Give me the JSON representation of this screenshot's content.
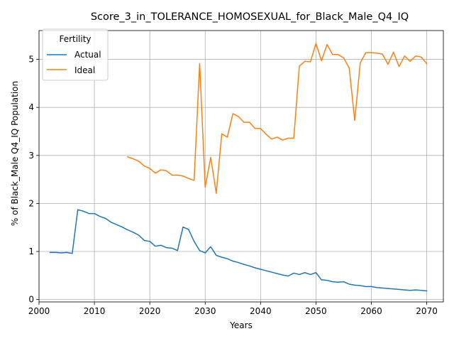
{
  "chart_data": {
    "type": "line",
    "title": "Score_3_in_TOLERANCE_HOMOSEXUAL_for_Black_Male_Q4_IQ",
    "xlabel": "Years",
    "ylabel": "% of Black_Male Q4_IQ Population",
    "xlim": [
      2000,
      2073
    ],
    "ylim": [
      -0.05,
      5.6
    ],
    "xticks": [
      2000,
      2010,
      2020,
      2030,
      2040,
      2050,
      2060,
      2070
    ],
    "yticks": [
      0,
      1,
      2,
      3,
      4,
      5
    ],
    "grid": true,
    "legend": {
      "title": "Fertility",
      "placement": "top-left"
    },
    "series": [
      {
        "name": "Actual",
        "color": "#1f77b4",
        "x": [
          2002,
          2003,
          2004,
          2005,
          2006,
          2007,
          2008,
          2009,
          2010,
          2011,
          2012,
          2013,
          2014,
          2015,
          2016,
          2017,
          2018,
          2019,
          2020,
          2021,
          2022,
          2023,
          2024,
          2025,
          2026,
          2027,
          2028,
          2029,
          2030,
          2031,
          2032,
          2033,
          2034,
          2035,
          2036,
          2037,
          2038,
          2039,
          2040,
          2041,
          2042,
          2043,
          2044,
          2045,
          2046,
          2047,
          2048,
          2049,
          2050,
          2051,
          2052,
          2053,
          2054,
          2055,
          2056,
          2057,
          2058,
          2059,
          2060,
          2061,
          2062,
          2063,
          2064,
          2065,
          2066,
          2067,
          2068,
          2069,
          2070
        ],
        "values": [
          0.98,
          0.98,
          0.97,
          0.98,
          0.96,
          1.87,
          1.84,
          1.79,
          1.79,
          1.73,
          1.69,
          1.61,
          1.56,
          1.51,
          1.45,
          1.4,
          1.34,
          1.23,
          1.21,
          1.11,
          1.13,
          1.08,
          1.07,
          1.02,
          1.51,
          1.46,
          1.21,
          1.02,
          0.97,
          1.1,
          0.92,
          0.88,
          0.85,
          0.8,
          0.77,
          0.73,
          0.7,
          0.66,
          0.63,
          0.6,
          0.57,
          0.54,
          0.51,
          0.49,
          0.55,
          0.52,
          0.56,
          0.52,
          0.56,
          0.41,
          0.4,
          0.37,
          0.36,
          0.37,
          0.32,
          0.3,
          0.29,
          0.27,
          0.27,
          0.25,
          0.24,
          0.23,
          0.22,
          0.21,
          0.2,
          0.19,
          0.2,
          0.19,
          0.18
        ]
      },
      {
        "name": "Ideal",
        "color": "#ff7f0e",
        "x": [
          2016,
          2017,
          2018,
          2019,
          2020,
          2021,
          2022,
          2023,
          2024,
          2025,
          2026,
          2027,
          2028,
          2029,
          2030,
          2031,
          2032,
          2033,
          2034,
          2035,
          2036,
          2037,
          2038,
          2039,
          2040,
          2041,
          2042,
          2043,
          2044,
          2045,
          2046,
          2047,
          2048,
          2049,
          2050,
          2051,
          2052,
          2053,
          2054,
          2055,
          2056,
          2057,
          2058,
          2059,
          2060,
          2061,
          2062,
          2063,
          2064,
          2065,
          2066,
          2067,
          2068,
          2069,
          2070
        ],
        "values": [
          2.97,
          2.93,
          2.88,
          2.78,
          2.73,
          2.63,
          2.7,
          2.68,
          2.59,
          2.59,
          2.57,
          2.52,
          2.48,
          4.91,
          2.34,
          2.96,
          2.21,
          3.45,
          3.38,
          3.87,
          3.81,
          3.69,
          3.69,
          3.56,
          3.56,
          3.44,
          3.34,
          3.38,
          3.32,
          3.36,
          3.36,
          4.86,
          4.96,
          4.95,
          5.33,
          4.97,
          5.31,
          5.1,
          5.1,
          5.03,
          4.82,
          3.73,
          4.93,
          5.14,
          5.14,
          5.13,
          5.11,
          4.9,
          5.15,
          4.85,
          5.07,
          4.96,
          5.07,
          5.05,
          4.91
        ]
      }
    ]
  }
}
